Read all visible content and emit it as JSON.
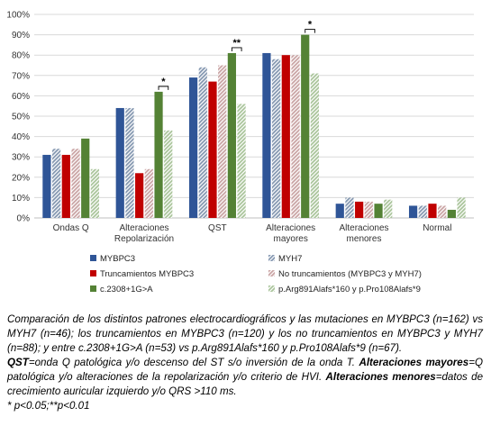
{
  "chart_data": {
    "type": "bar",
    "categories": [
      "Ondas Q",
      "Alteraciones\nRepolarización",
      "QST",
      "Alteraciones\nmayores",
      "Alteraciones\nmenores",
      "Normal"
    ],
    "ylim": [
      0,
      100
    ],
    "yticks": [
      "0%",
      "10%",
      "20%",
      "30%",
      "40%",
      "50%",
      "60%",
      "70%",
      "80%",
      "90%",
      "100%"
    ],
    "grid": true,
    "legend_position": "bottom",
    "series": [
      {
        "name": "MYBPC3",
        "color": "#2f5597",
        "pattern": "solid",
        "values": [
          31,
          54,
          69,
          81,
          7,
          6
        ]
      },
      {
        "name": "MYH7",
        "color": "#8497b0",
        "pattern": "hatch",
        "values": [
          34,
          54,
          74,
          78,
          10,
          6
        ]
      },
      {
        "name": "Truncamientos MYBPC3",
        "color": "#c00000",
        "pattern": "solid",
        "values": [
          31,
          22,
          67,
          80,
          8,
          7
        ]
      },
      {
        "name": "No truncamientos (MYBPC3 y MYH7)",
        "color": "#c9a3a3",
        "pattern": "hatch",
        "values": [
          34,
          24,
          75,
          80,
          8,
          6
        ]
      },
      {
        "name": "c.2308+1G>A",
        "color": "#548235",
        "pattern": "solid",
        "values": [
          39,
          62,
          81,
          90,
          7,
          4
        ]
      },
      {
        "name": "p.Arg891Alafs*160 y p.Pro108Alafs*9",
        "color": "#a9c49a",
        "pattern": "hatch",
        "values": [
          24,
          43,
          56,
          71,
          9,
          10
        ]
      }
    ],
    "annotations": [
      {
        "text": "*",
        "category": "Alteraciones\nRepolarización",
        "series": [
          4,
          5
        ]
      },
      {
        "text": "**",
        "category": "QST",
        "series": [
          4,
          5
        ]
      },
      {
        "text": "*",
        "category": "Alteraciones\nmayores",
        "series": [
          4,
          5
        ]
      }
    ]
  },
  "caption": {
    "line1": "Comparación de los distintos patrones electrocardiográficos y las mutaciones en MYBPC3 (n=162) vs MYH7 (n=46); los truncamientos en MYBPC3 (n=120) y los no truncamientos en MYBPC3 y MYH7 (n=88); y entre c.2308+1G>A (n=53) vs p.Arg891Alafs*160 y p.Pro108Alafs*9 (n=67).",
    "qst_term": "QST",
    "qst_def": "=onda Q patológica y/o descenso del ST s/o inversión de la onda T. ",
    "mayores_term": "Alteraciones mayores",
    "mayores_def": "=Q patológica y/o alteraciones de la repolarización y/o criterio de HVI. ",
    "menores_term": "Alteraciones menores",
    "menores_def": "=datos de crecimiento auricular izquierdo y/o QRS >110 ms.",
    "footnote": "* p<0.05;**p<0.01"
  }
}
